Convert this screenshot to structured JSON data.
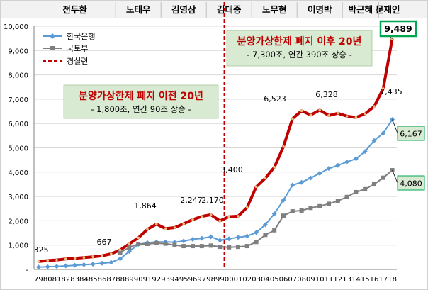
{
  "chart_data": {
    "type": "line",
    "x": [
      "79",
      "80",
      "81",
      "82",
      "83",
      "84",
      "85",
      "86",
      "87",
      "88",
      "89",
      "90",
      "91",
      "92",
      "93",
      "94",
      "95",
      "96",
      "97",
      "98",
      "99",
      "00",
      "01",
      "02",
      "03",
      "04",
      "05",
      "06",
      "07",
      "08",
      "09",
      "10",
      "11",
      "12",
      "13",
      "14",
      "15",
      "16",
      "17",
      "18"
    ],
    "ylim": [
      0,
      10000
    ],
    "yticks": [
      "-",
      "1,000",
      "2,000",
      "3,000",
      "4,000",
      "5,000",
      "6,000",
      "7,000",
      "8,000",
      "9,000",
      "10,000"
    ],
    "grid": true,
    "legend_position": "top-left",
    "series": [
      {
        "name": "한국은행",
        "color": "#5b9bd5",
        "marker": "diamond",
        "values": [
          95,
          110,
          125,
          145,
          170,
          195,
          220,
          255,
          290,
          440,
          740,
          1030,
          1100,
          1130,
          1130,
          1120,
          1170,
          1240,
          1280,
          1340,
          1200,
          1260,
          1320,
          1370,
          1520,
          1840,
          2290,
          2850,
          3470,
          3580,
          3760,
          3950,
          4150,
          4280,
          4420,
          4550,
          4850,
          5300,
          5600,
          6167
        ]
      },
      {
        "name": "국토부",
        "color": "#7f7f7f",
        "marker": "square",
        "values": [
          null,
          null,
          null,
          null,
          null,
          null,
          null,
          null,
          null,
          700,
          900,
          1050,
          1050,
          1080,
          1060,
          1000,
          960,
          960,
          960,
          980,
          930,
          910,
          930,
          960,
          1130,
          1420,
          1610,
          2210,
          2390,
          2420,
          2530,
          2600,
          2700,
          2820,
          2980,
          3180,
          3300,
          3500,
          3770,
          4080
        ]
      },
      {
        "name": "경실련",
        "color": "#c00000",
        "marker": "dot",
        "values": [
          325,
          365,
          390,
          430,
          460,
          490,
          520,
          560,
          640,
          800,
          1050,
          1300,
          1650,
          1864,
          1680,
          1720,
          1880,
          2050,
          2180,
          2247,
          2000,
          2170,
          2190,
          2550,
          3400,
          3750,
          4200,
          5050,
          6200,
          6523,
          6350,
          6550,
          6328,
          6420,
          6300,
          6250,
          6400,
          6700,
          7435,
          9489
        ]
      }
    ],
    "data_labels": {
      "v325": "325",
      "v667": "667",
      "v1864": "1,864",
      "v2247": "2,247",
      "v2170": "2,170",
      "v3400": "3,400",
      "v6523": "6,523",
      "v6328": "6,328",
      "v7435": "7,435",
      "v9489": "9,489",
      "v6167": "6,167",
      "v4080": "4,080"
    },
    "eras": [
      {
        "label": "전두환",
        "from": "79",
        "to": "87"
      },
      {
        "label": "노태우",
        "from": "88",
        "to": "92"
      },
      {
        "label": "김영삼",
        "from": "93",
        "to": "97"
      },
      {
        "label": "김대중",
        "from": "98",
        "to": "02"
      },
      {
        "label": "노무현",
        "from": "03",
        "to": "07"
      },
      {
        "label": "이명박",
        "from": "08",
        "to": "12"
      },
      {
        "label": "박근혜",
        "from": "13",
        "to": "16"
      },
      {
        "label": "문재인",
        "from": "17",
        "to": "18"
      }
    ],
    "divider_after": "99",
    "annotations": [
      {
        "title": "분양가상한제 폐지 이전 20년",
        "subtitle": "- 1,800조, 연간 90조 상승 -"
      },
      {
        "title": "분양가상한제 폐지 이후 20년",
        "subtitle": "- 7,300조, 연간 390조 상승 -"
      }
    ],
    "colors": {
      "header_bg": "#f2f2f2",
      "callout_bg": "#d8ead2",
      "divider": "#c00000",
      "highlight_border": "#00a651"
    }
  }
}
